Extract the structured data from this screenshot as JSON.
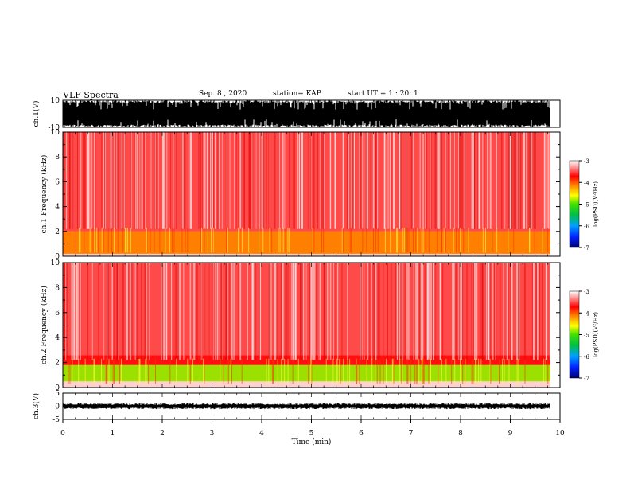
{
  "header": {
    "title": "VLF Spectra",
    "date": "Sep. 8 , 2020",
    "station": "station= KAP",
    "start": "start UT = 1 : 20: 1"
  },
  "chart_data": [
    {
      "type": "line",
      "panel": "waveform-ch1",
      "ylabel": "ch.1(V)",
      "ylim": [
        -10,
        10
      ],
      "yticks": [
        "10",
        "-10"
      ],
      "xlim": [
        0,
        10
      ]
    },
    {
      "type": "heatmap",
      "panel": "spectrogram-ch1",
      "ylabel": "ch.1 Frequency (kHz)",
      "ylim": [
        0,
        10
      ],
      "yticks": [
        "0",
        "2",
        "4",
        "6",
        "8",
        "10"
      ],
      "xlim": [
        0,
        9.8
      ],
      "colorbar": {
        "label": "log(PSD)(V²/Hz)",
        "range": [
          -7,
          -3
        ],
        "ticks": [
          "-3",
          "-4",
          "-5",
          "-6",
          "-7"
        ]
      },
      "bands": [
        {
          "from_khz": 0.2,
          "to_khz": 2.0,
          "level": -4.1
        },
        {
          "from_khz": 2.0,
          "to_khz": 10.0,
          "level": -3.5
        }
      ]
    },
    {
      "type": "heatmap",
      "panel": "spectrogram-ch2",
      "ylabel": "ch.2 Frequency (kHz)",
      "ylim": [
        0,
        10
      ],
      "yticks": [
        "0",
        "2",
        "4",
        "6",
        "8",
        "10"
      ],
      "xlim": [
        0,
        9.8
      ],
      "colorbar": {
        "label": "log(PSD)(V²/Hz)",
        "range": [
          -7,
          -3
        ],
        "ticks": [
          "-3",
          "-4",
          "-5",
          "-6",
          "-7"
        ]
      },
      "bands": [
        {
          "from_khz": 0.5,
          "to_khz": 1.8,
          "level": -4.8
        },
        {
          "from_khz": 1.8,
          "to_khz": 2.6,
          "level": -4.0
        },
        {
          "from_khz": 2.6,
          "to_khz": 10.0,
          "level": -3.5
        }
      ]
    },
    {
      "type": "line",
      "panel": "waveform-ch3",
      "ylabel": "ch.3(V)",
      "ylim": [
        -5,
        5
      ],
      "yticks": [
        "5",
        "0",
        "-5"
      ],
      "xlim": [
        0,
        10
      ],
      "xlabel": "Time (min)",
      "xticks": [
        "0",
        "1",
        "2",
        "3",
        "4",
        "5",
        "6",
        "7",
        "8",
        "9",
        "10"
      ]
    }
  ]
}
